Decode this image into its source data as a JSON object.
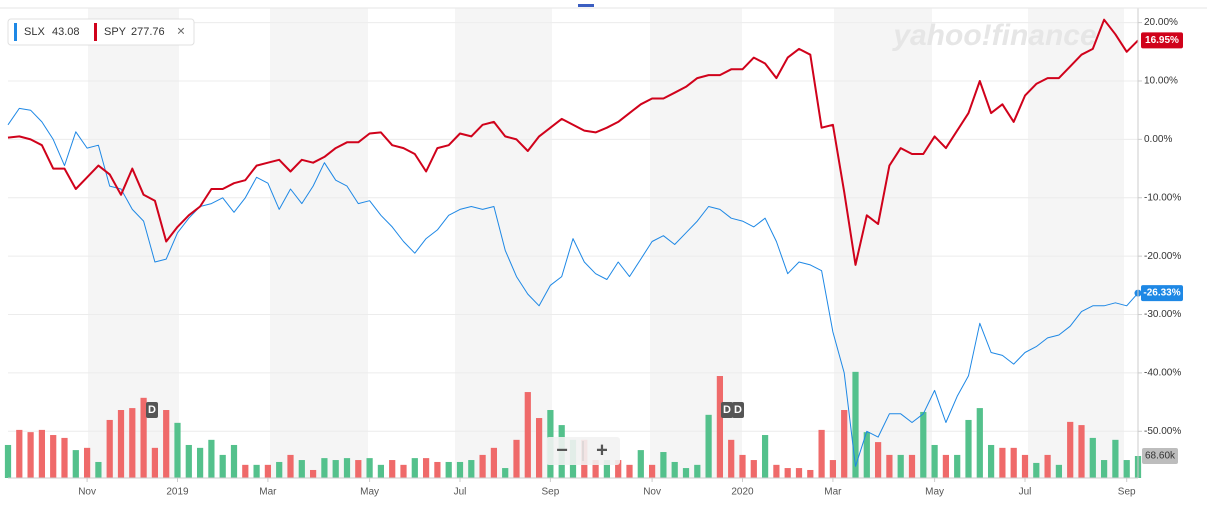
{
  "chart_data": {
    "type": "line",
    "watermark": "yahoo!finance",
    "zoom_out": "−",
    "zoom_in": "+",
    "close": "×",
    "annotations": [
      "D",
      "D",
      "D"
    ],
    "categories": [
      null,
      null,
      null,
      null,
      null,
      null,
      null,
      "Nov",
      null,
      null,
      null,
      null,
      null,
      null,
      null,
      "2019",
      null,
      null,
      null,
      null,
      null,
      null,
      null,
      "Mar",
      null,
      null,
      null,
      null,
      null,
      null,
      null,
      null,
      "May",
      null,
      null,
      null,
      null,
      null,
      null,
      null,
      "Jul",
      null,
      null,
      null,
      null,
      null,
      null,
      null,
      "Sep",
      null,
      null,
      null,
      null,
      null,
      null,
      null,
      null,
      "Nov",
      null,
      null,
      null,
      null,
      null,
      null,
      null,
      "2020",
      null,
      null,
      null,
      null,
      null,
      null,
      null,
      "Mar",
      null,
      null,
      null,
      null,
      null,
      null,
      null,
      null,
      "May",
      null,
      null,
      null,
      null,
      null,
      null,
      null,
      "Jul",
      null,
      null,
      null,
      null,
      null,
      null,
      null,
      null,
      "Sep",
      null
    ],
    "series": [
      {
        "name": "SLX",
        "price": 43.08,
        "color": "#1e88e5",
        "last_label": "-26.33%",
        "values": [
          2.5,
          5.3,
          5,
          3,
          0,
          -4.5,
          1.3,
          -1.5,
          -1,
          -8,
          -8.5,
          -12,
          -14,
          -21,
          -20.5,
          -16,
          -13.5,
          -11.5,
          -11,
          -10,
          -12.5,
          -10,
          -6.5,
          -7.5,
          -12,
          -8.5,
          -11,
          -8,
          -4,
          -7,
          -8,
          -11,
          -10.5,
          -13,
          -15,
          -17.5,
          -19.5,
          -17,
          -15.5,
          -13,
          -12,
          -11.5,
          -12,
          -11.5,
          -19,
          -23.5,
          -26.5,
          -28.5,
          -25,
          -23.5,
          -17,
          -21,
          -23,
          -24,
          -21,
          -23.5,
          -20.5,
          -17.5,
          -16.5,
          -18,
          -16,
          -14,
          -11.5,
          -12,
          -13.5,
          -14,
          -15,
          -13.5,
          -17.5,
          -23,
          -21,
          -21.5,
          -22.5,
          -33,
          -40,
          -56,
          -50,
          -51,
          -47,
          -47,
          -48.5,
          -47,
          -43,
          -48.5,
          -44,
          -40.5,
          -31.5,
          -36.5,
          -37,
          -38.5,
          -36.5,
          -35.5,
          -34,
          -33.5,
          -32,
          -29.5,
          -28.5,
          -28.5,
          -28,
          -28.5,
          -26.33
        ]
      },
      {
        "name": "SPY",
        "price": 277.76,
        "color": "#d0021b",
        "last_label": "16.95%",
        "values": [
          0.3,
          0.5,
          0,
          -1,
          -5,
          -5,
          -8.5,
          -6.5,
          -4.5,
          -6,
          -9.5,
          -5,
          -9.5,
          -10.5,
          -17.5,
          -15,
          -13,
          -11.5,
          -8.5,
          -8.5,
          -7.5,
          -7,
          -4.5,
          -4,
          -3.5,
          -5.5,
          -3.5,
          -4,
          -3,
          -1.5,
          -0.5,
          -0.5,
          1,
          1.2,
          -1,
          -1.5,
          -2.5,
          -5.5,
          -1.5,
          -1,
          1,
          0.5,
          2.5,
          3,
          0.5,
          0,
          -2,
          0.5,
          2,
          3.5,
          2.5,
          1.5,
          1.2,
          2,
          3,
          4.5,
          6,
          7,
          7,
          8,
          9,
          10.5,
          11,
          11,
          12,
          12,
          14,
          13,
          10.5,
          14,
          15.5,
          14.5,
          2,
          2.5,
          -9,
          -21.5,
          -13,
          -14.5,
          -4.5,
          -1.5,
          -2.5,
          -2.5,
          0.5,
          -1.5,
          1.5,
          4.5,
          10,
          4.5,
          6,
          3,
          7.5,
          9.5,
          10.5,
          10.5,
          12.5,
          14.5,
          15.5,
          20.5,
          18,
          15,
          16.95
        ]
      }
    ],
    "volume": {
      "last_label": "68.60k",
      "values": [
        103,
        150,
        143,
        150,
        134,
        125,
        87,
        94,
        50,
        181,
        212,
        218,
        250,
        94,
        212,
        172,
        103,
        94,
        119,
        72,
        103,
        41,
        41,
        41,
        50,
        72,
        56,
        25,
        62,
        56,
        62,
        56,
        62,
        41,
        56,
        41,
        62,
        62,
        50,
        50,
        50,
        56,
        72,
        94,
        31,
        119,
        268,
        187,
        212,
        165,
        119,
        119,
        56,
        56,
        56,
        41,
        87,
        41,
        81,
        50,
        31,
        41,
        197,
        318,
        119,
        72,
        56,
        134,
        41,
        31,
        31,
        25,
        150,
        56,
        212,
        331,
        143,
        112,
        72,
        72,
        72,
        206,
        103,
        72,
        72,
        181,
        218,
        103,
        94,
        94,
        72,
        47,
        72,
        41,
        175,
        165,
        125,
        56,
        119,
        56,
        68.6
      ],
      "colors": [
        "#54c18c",
        "#ef6a6a",
        "#ef6a6a",
        "#ef6a6a",
        "#ef6a6a",
        "#ef6a6a",
        "#54c18c",
        "#ef6a6a",
        "#54c18c",
        "#ef6a6a",
        "#ef6a6a",
        "#ef6a6a",
        "#ef6a6a",
        "#ef6a6a",
        "#ef6a6a",
        "#54c18c",
        "#54c18c",
        "#54c18c",
        "#54c18c",
        "#54c18c",
        "#54c18c",
        "#ef6a6a",
        "#54c18c",
        "#ef6a6a",
        "#54c18c",
        "#ef6a6a",
        "#54c18c",
        "#ef6a6a",
        "#54c18c",
        "#54c18c",
        "#54c18c",
        "#ef6a6a",
        "#54c18c",
        "#54c18c",
        "#ef6a6a",
        "#ef6a6a",
        "#54c18c",
        "#ef6a6a",
        "#ef6a6a",
        "#54c18c",
        "#54c18c",
        "#54c18c",
        "#ef6a6a",
        "#ef6a6a",
        "#54c18c",
        "#ef6a6a",
        "#ef6a6a",
        "#ef6a6a",
        "#54c18c",
        "#54c18c",
        "#54c18c",
        "#ef6a6a",
        "#ef6a6a",
        "#54c18c",
        "#ef6a6a",
        "#ef6a6a",
        "#54c18c",
        "#ef6a6a",
        "#54c18c",
        "#54c18c",
        "#54c18c",
        "#54c18c",
        "#54c18c",
        "#ef6a6a",
        "#ef6a6a",
        "#ef6a6a",
        "#ef6a6a",
        "#54c18c",
        "#ef6a6a",
        "#ef6a6a",
        "#ef6a6a",
        "#ef6a6a",
        "#ef6a6a",
        "#ef6a6a",
        "#ef6a6a",
        "#54c18c",
        "#54c18c",
        "#ef6a6a",
        "#ef6a6a",
        "#54c18c",
        "#ef6a6a",
        "#54c18c",
        "#54c18c",
        "#ef6a6a",
        "#54c18c",
        "#54c18c",
        "#54c18c",
        "#54c18c",
        "#ef6a6a",
        "#ef6a6a",
        "#ef6a6a",
        "#54c18c",
        "#ef6a6a",
        "#54c18c",
        "#ef6a6a",
        "#ef6a6a",
        "#54c18c",
        "#54c18c",
        "#54c18c",
        "#54c18c",
        "#54c18c"
      ]
    },
    "ylim": [
      -58,
      22.5
    ],
    "yticks": [
      {
        "value": 20,
        "label": "20.00%"
      },
      {
        "value": 10,
        "label": "10.00%"
      },
      {
        "value": 0,
        "label": "0.00%"
      },
      {
        "value": -10,
        "label": "-10.00%"
      },
      {
        "value": -20,
        "label": "-20.00%"
      },
      {
        "value": -30,
        "label": "-30.00%"
      },
      {
        "value": -40,
        "label": "-40.00%"
      },
      {
        "value": -50,
        "label": "-50.00%"
      }
    ],
    "grid": true
  }
}
